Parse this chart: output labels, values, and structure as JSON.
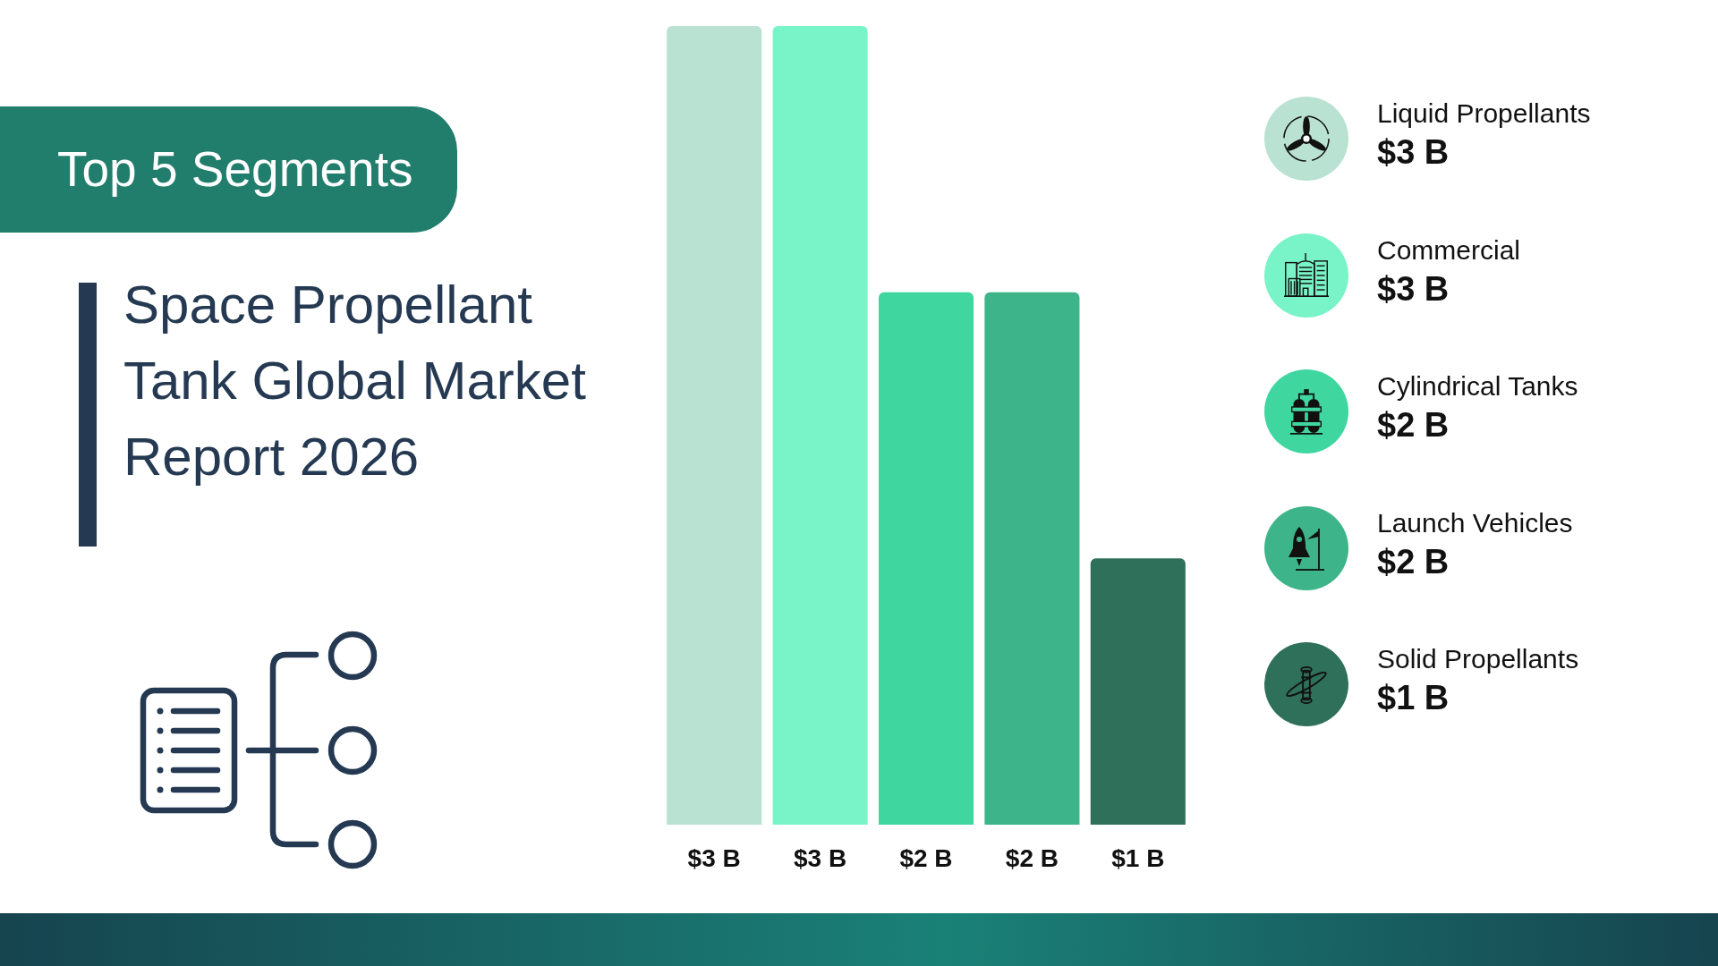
{
  "chart_data": {
    "type": "bar",
    "title": "Space Propellant Tank Global Market Report 2026",
    "subtitle": "Top 5 Segments",
    "categories": [
      null
    ],
    "series": [
      {
        "name": "Liquid Propellants",
        "color": "#b9e2d3",
        "values": [
          3
        ],
        "value_labels": [
          "$3 B"
        ]
      },
      {
        "name": "Commercial",
        "color": "#79f3c8",
        "values": [
          3
        ],
        "value_labels": [
          "$3 B"
        ]
      },
      {
        "name": "Cylindrical Tanks",
        "color": "#3fd6a0",
        "values": [
          2
        ],
        "value_labels": [
          "$2 B"
        ]
      },
      {
        "name": "Launch Vehicles",
        "color": "#3db489",
        "values": [
          2
        ],
        "value_labels": [
          "$2 B"
        ]
      },
      {
        "name": "Solid Propellants",
        "color": "#2f705a",
        "values": [
          1
        ],
        "value_labels": [
          "$1 B"
        ]
      }
    ],
    "tick_labels": false,
    "legend": "right"
  }
}
